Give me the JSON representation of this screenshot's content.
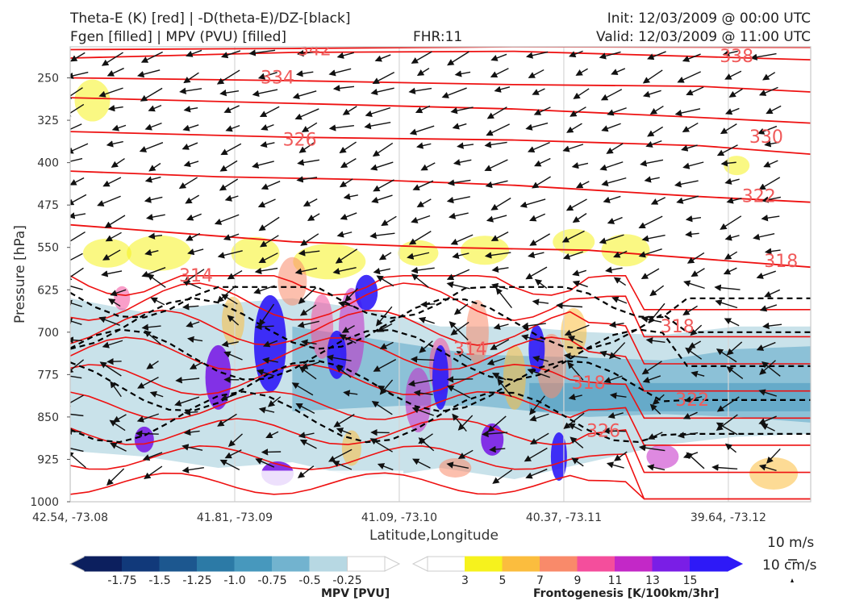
{
  "header": {
    "title_left_1": "Theta-E (K) [red] | -D(theta-E)/DZ-[black]",
    "title_left_2": "Fgen [filled] | MPV (PVU) [filled]",
    "title_center": "FHR:11",
    "title_right_1": "Init: 12/03/2009 @ 00:00 UTC",
    "title_right_2": "Valid: 12/03/2009 @ 11:00 UTC"
  },
  "colors": {
    "theta_e": "#ee1111",
    "dthetae_dz": "#000000",
    "mpv_neg": [
      "#0c1f5e",
      "#11397a",
      "#1c578f",
      "#2c7aa6",
      "#4798bd",
      "#72b3cf",
      "#b7d8e3",
      "#ffffff"
    ],
    "fgen": [
      "#ffffff",
      "#f6f21d",
      "#fbbd3e",
      "#f98a6a",
      "#f44e9c",
      "#c328c7",
      "#7a1ee6",
      "#2e19f7"
    ]
  },
  "chart_data": {
    "type": "cross-section",
    "xlabel": "Latitude,Longitude",
    "ylabel": "Pressure [hPa]",
    "x_ticks": [
      "42.54, -73.08",
      "41.81, -73.09",
      "41.09, -73.10",
      "40.37, -73.11",
      "39.64, -73.12"
    ],
    "y_ticks": [
      250,
      325,
      400,
      475,
      550,
      625,
      700,
      775,
      850,
      925,
      1000
    ],
    "ylim": [
      1000,
      195
    ],
    "y_scale": "linear, inverted",
    "theta_e_labels": [
      {
        "label": "342",
        "x": 0.33,
        "p": 200
      },
      {
        "label": "338",
        "x": 0.9,
        "p": 212
      },
      {
        "label": "334",
        "x": 0.28,
        "p": 250
      },
      {
        "label": "330",
        "x": 0.94,
        "p": 355
      },
      {
        "label": "326",
        "x": 0.31,
        "p": 360
      },
      {
        "label": "322",
        "x": 0.93,
        "p": 460
      },
      {
        "label": "318",
        "x": 0.96,
        "p": 575
      },
      {
        "label": "314",
        "x": 0.17,
        "p": 600
      },
      {
        "label": "318",
        "x": 0.82,
        "p": 690
      },
      {
        "label": "314",
        "x": 0.54,
        "p": 730
      },
      {
        "label": "318",
        "x": 0.7,
        "p": 790
      },
      {
        "label": "322",
        "x": 0.84,
        "p": 820
      },
      {
        "label": "326",
        "x": 0.72,
        "p": 875
      }
    ],
    "mpv_colorbar": {
      "label": "MPV [PVU]",
      "ticks": [
        "-1.75",
        "-1.5",
        "-1.25",
        "-1.0",
        "-0.75",
        "-0.5",
        "-0.25"
      ]
    },
    "fgen_colorbar": {
      "label": "Frontogenesis [K/100km/3hr]",
      "ticks": [
        "3",
        "5",
        "7",
        "9",
        "11",
        "13",
        "15"
      ]
    },
    "wind_key": {
      "horizontal": "10 m/s",
      "vertical": "10 cm/s"
    }
  }
}
